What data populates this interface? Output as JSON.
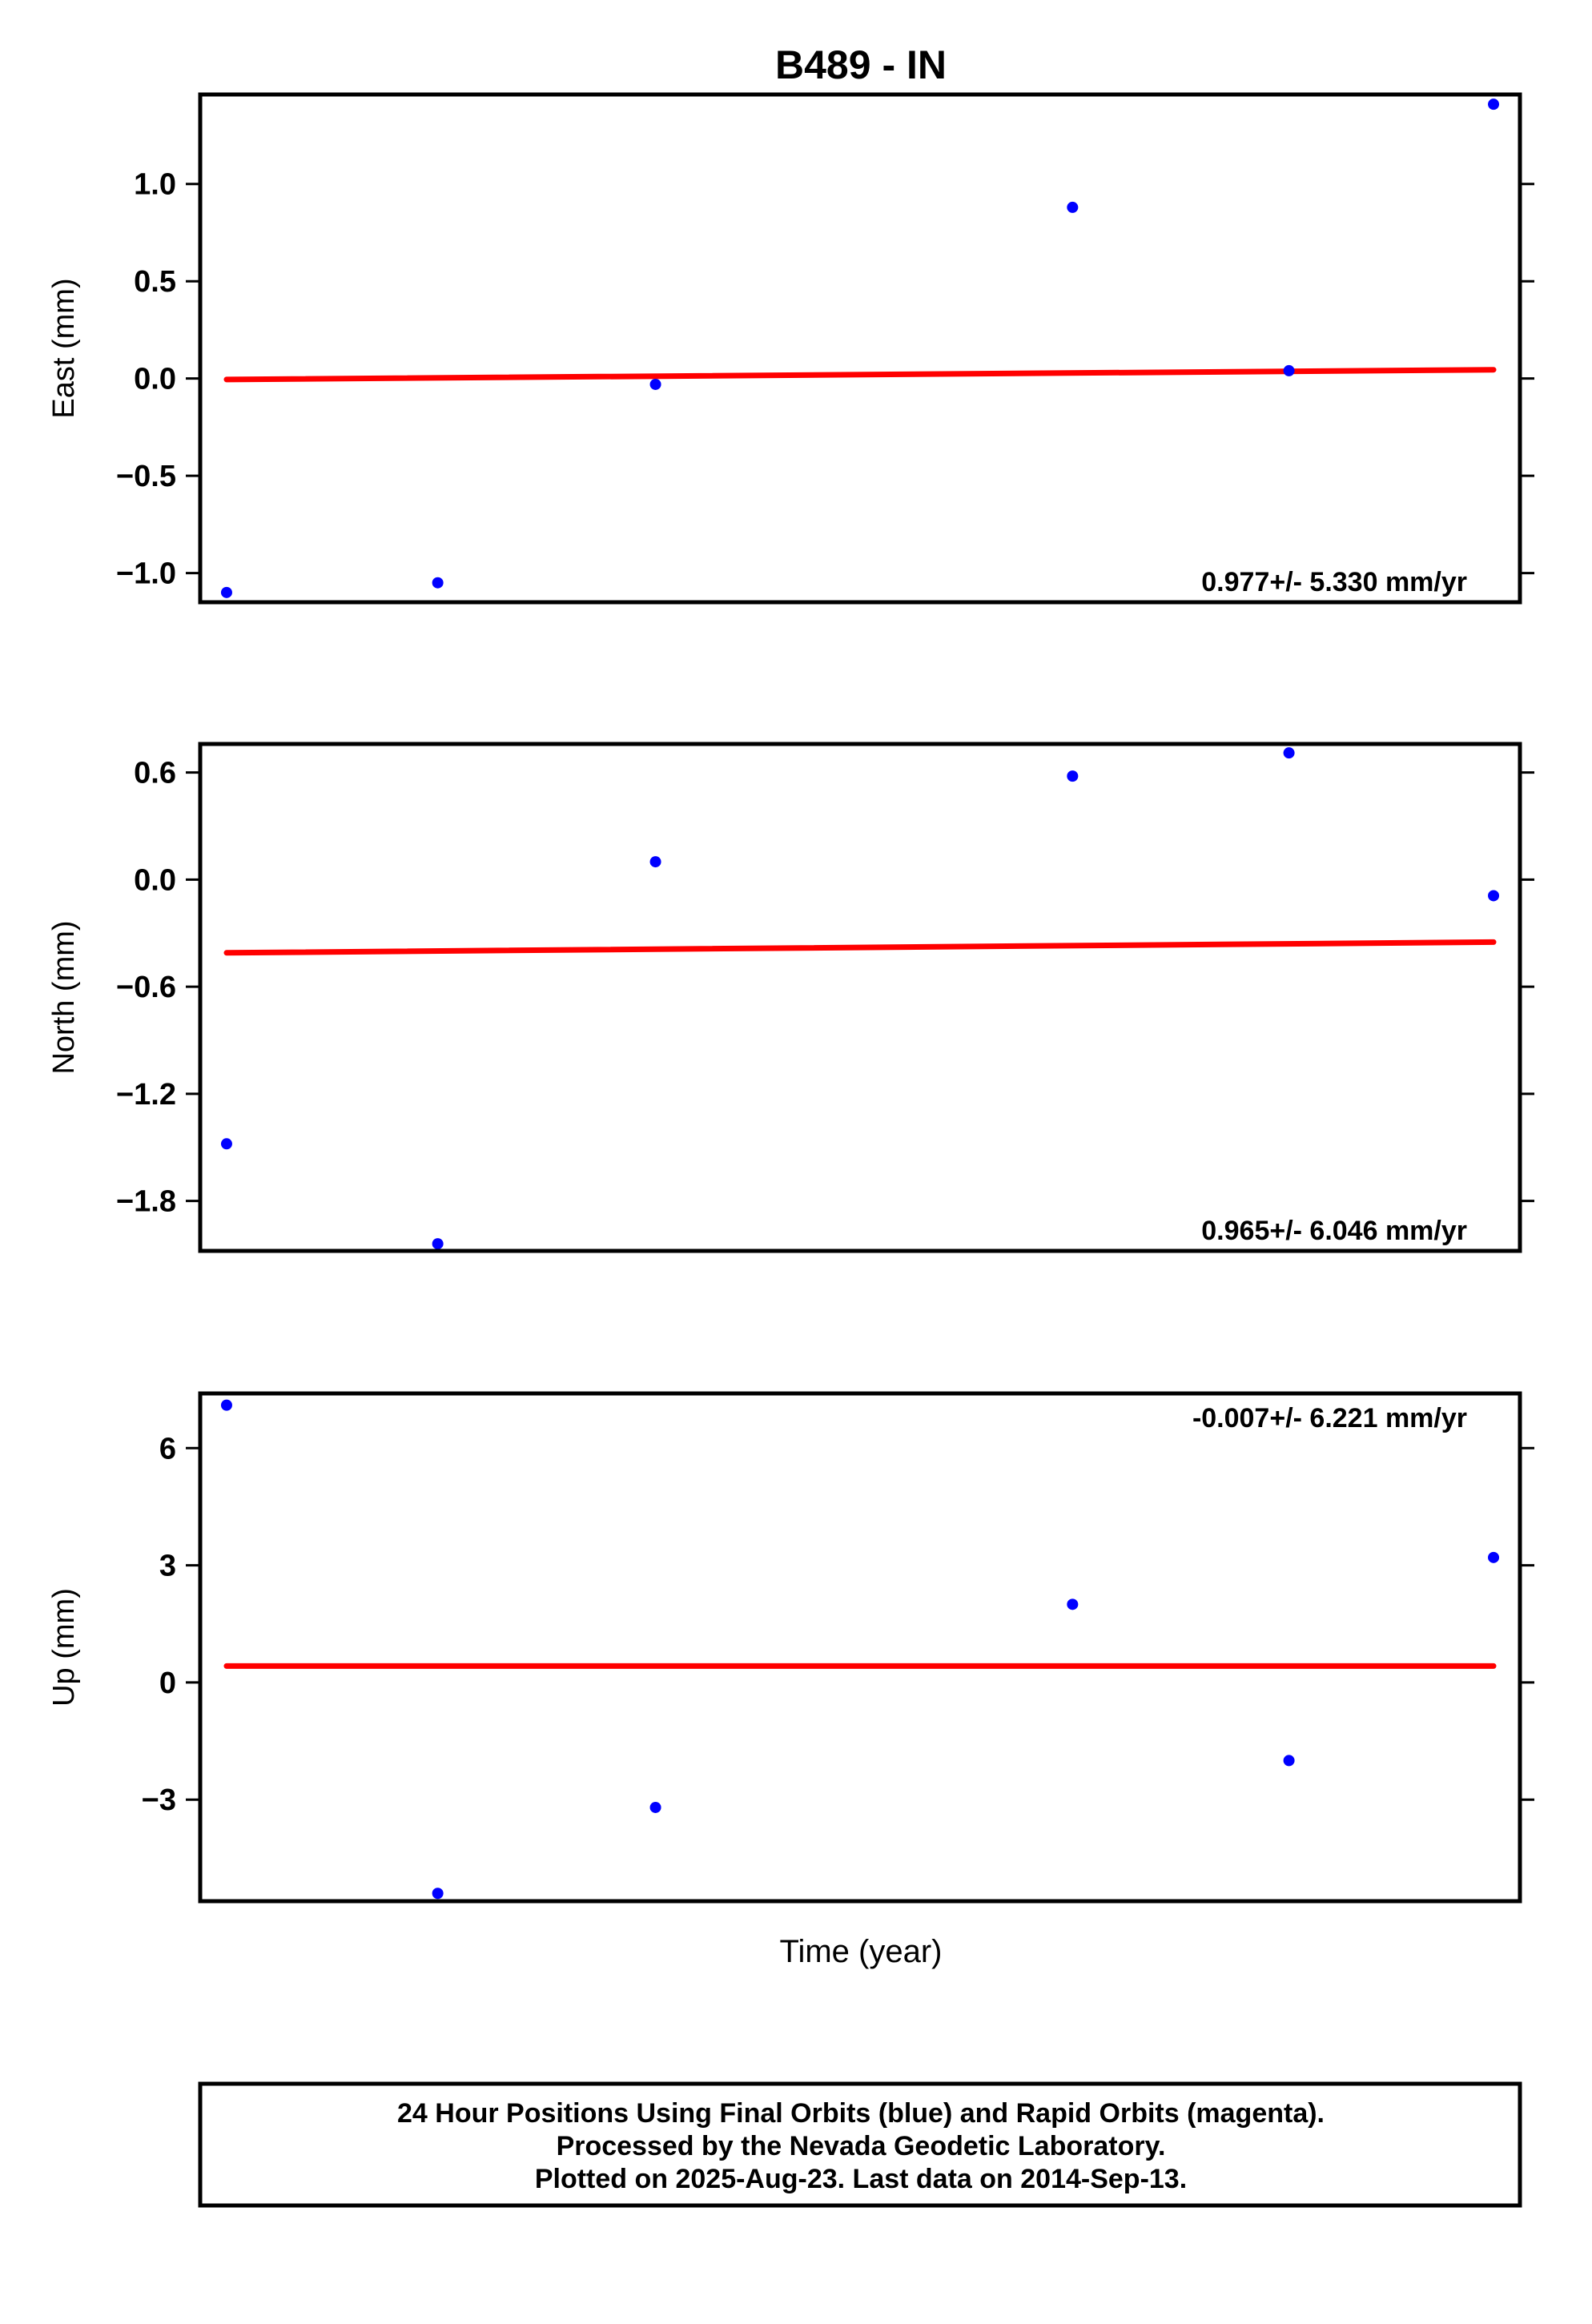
{
  "title": "B489 - IN",
  "x_label": "Time (year)",
  "footer": {
    "lines": [
      "24 Hour Positions Using Final Orbits (blue) and Rapid Orbits (magenta).",
      "Processed by the Nevada Geodetic Laboratory.",
      "Plotted on 2025-Aug-23. Last data on 2014-Sep-13."
    ]
  },
  "colors": {
    "data": "#0000ff",
    "trend": "#ff0000",
    "frame": "#000000"
  },
  "chart_data": [
    {
      "type": "scatter",
      "name": "East",
      "ylabel": "East (mm)",
      "yticks": [
        1.0,
        0.5,
        0.0,
        -0.5,
        -1.0
      ],
      "yticklabels": [
        "1.0",
        "0.5",
        "0.0",
        "−0.5",
        "−1.0"
      ],
      "ylim": [
        -1.15,
        1.46
      ],
      "xlim": [
        0,
        1
      ],
      "x": [
        0.02,
        0.18,
        0.345,
        0.661,
        0.825,
        0.98
      ],
      "values": [
        -1.1,
        -1.05,
        -0.03,
        0.88,
        0.04,
        1.41
      ],
      "trend": [
        [
          0.02,
          -0.005
        ],
        [
          0.98,
          0.045
        ]
      ],
      "rate_label": "0.977+/- 5.330 mm/yr",
      "rate_position": "bottom-right"
    },
    {
      "type": "scatter",
      "name": "North",
      "ylabel": "North (mm)",
      "yticks": [
        0.6,
        0.0,
        -0.6,
        -1.2,
        -1.8
      ],
      "yticklabels": [
        "0.6",
        "0.0",
        "−0.6",
        "−1.2",
        "−1.8"
      ],
      "ylim": [
        -2.08,
        0.76
      ],
      "xlim": [
        0,
        1
      ],
      "x": [
        0.02,
        0.18,
        0.345,
        0.661,
        0.825,
        0.98
      ],
      "values": [
        -1.48,
        -2.04,
        0.1,
        0.58,
        0.71,
        -0.09
      ],
      "trend": [
        [
          0.02,
          -0.41
        ],
        [
          0.98,
          -0.35
        ]
      ],
      "rate_label": "0.965+/- 6.046 mm/yr",
      "rate_position": "bottom-right"
    },
    {
      "type": "scatter",
      "name": "Up",
      "ylabel": "Up (mm)",
      "yticks": [
        6,
        3,
        0,
        -3
      ],
      "yticklabels": [
        "6",
        "3",
        "0",
        "−3"
      ],
      "ylim": [
        -5.6,
        7.4
      ],
      "xlim": [
        0,
        1
      ],
      "x": [
        0.02,
        0.18,
        0.345,
        0.661,
        0.825,
        0.98
      ],
      "values": [
        7.1,
        -5.4,
        -3.2,
        2.0,
        -2.0,
        3.2
      ],
      "trend": [
        [
          0.02,
          0.42
        ],
        [
          0.98,
          0.42
        ]
      ],
      "rate_label": "-0.007+/- 6.221 mm/yr",
      "rate_position": "top-right"
    }
  ]
}
